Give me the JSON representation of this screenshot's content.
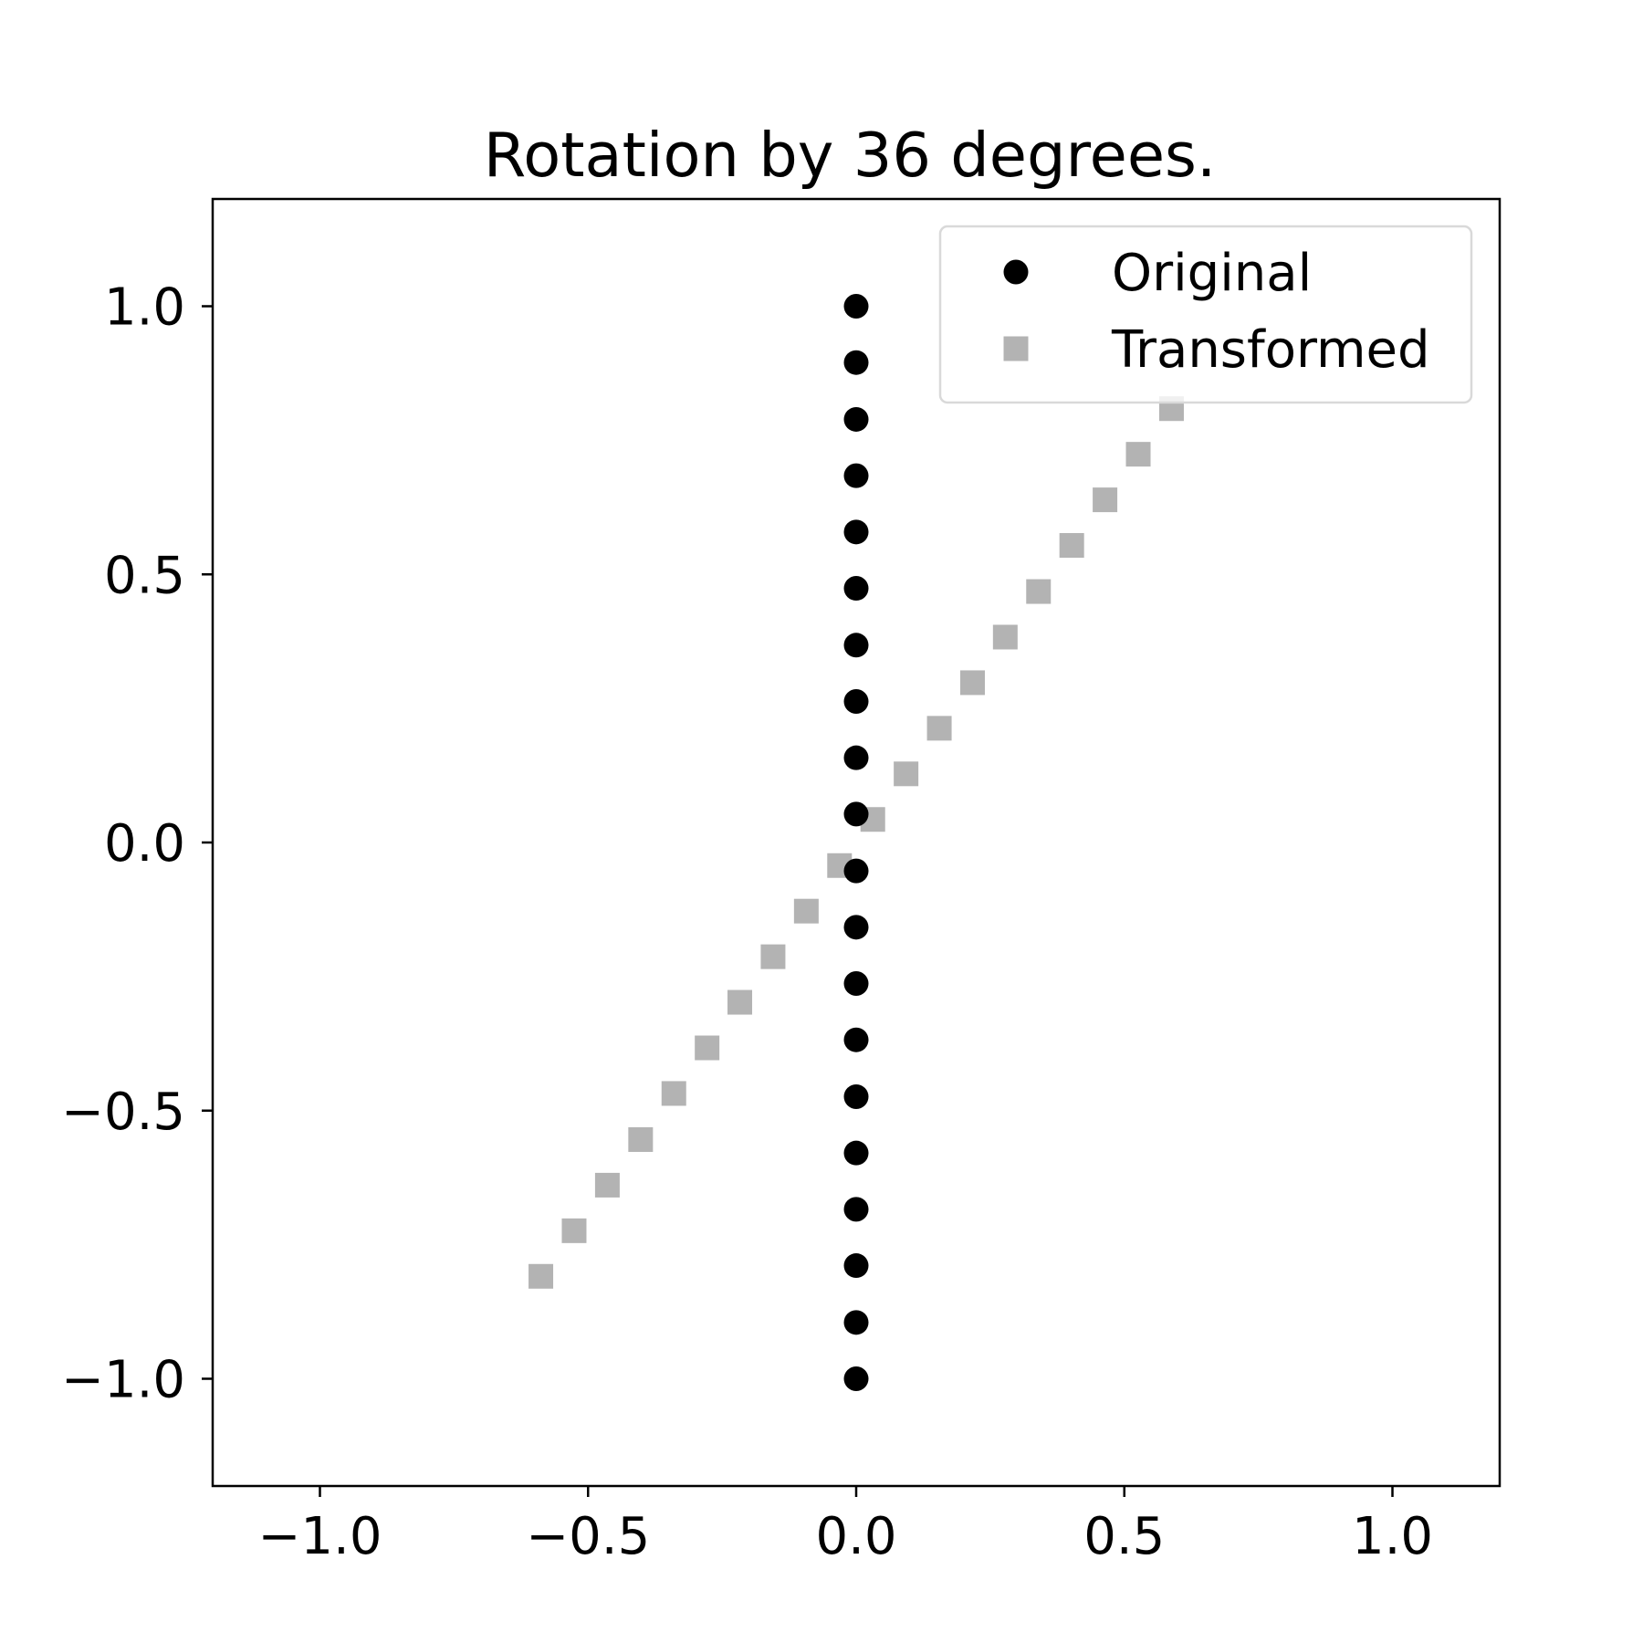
{
  "chart_data": {
    "type": "scatter",
    "title": "Rotation by 36 degrees.",
    "xlabel": "",
    "ylabel": "",
    "xlim": [
      -1.2,
      1.2
    ],
    "ylim": [
      -1.2,
      1.2
    ],
    "xticks": [
      -1.0,
      -0.5,
      0.0,
      0.5,
      1.0
    ],
    "yticks": [
      -1.0,
      -0.5,
      0.0,
      0.5,
      1.0
    ],
    "xtick_labels": [
      "−1.0",
      "−0.5",
      "0.0",
      "0.5",
      "1.0"
    ],
    "ytick_labels": [
      "−1.0",
      "−0.5",
      "0.0",
      "0.5",
      "1.0"
    ],
    "grid": false,
    "legend": {
      "placement": "top-right"
    },
    "series": [
      {
        "name": "Original",
        "marker": "circle",
        "color": "#000000",
        "x": [
          0,
          0,
          0,
          0,
          0,
          0,
          0,
          0,
          0,
          0,
          0,
          0,
          0,
          0,
          0,
          0,
          0,
          0,
          0,
          0
        ],
        "y": [
          -1.0,
          -0.895,
          -0.789,
          -0.684,
          -0.579,
          -0.474,
          -0.368,
          -0.263,
          -0.158,
          -0.053,
          0.053,
          0.158,
          0.263,
          0.368,
          0.474,
          0.579,
          0.684,
          0.789,
          0.895,
          1.0
        ]
      },
      {
        "name": "Transformed",
        "marker": "square",
        "color": "#b3b3b3",
        "x": [
          -0.588,
          -0.526,
          -0.464,
          -0.402,
          -0.34,
          -0.278,
          -0.217,
          -0.155,
          -0.093,
          -0.031,
          0.031,
          0.093,
          0.155,
          0.217,
          0.278,
          0.34,
          0.402,
          0.464,
          0.526,
          0.588
        ],
        "y": [
          -0.809,
          -0.724,
          -0.639,
          -0.554,
          -0.468,
          -0.383,
          -0.298,
          -0.213,
          -0.128,
          -0.043,
          0.043,
          0.128,
          0.213,
          0.298,
          0.383,
          0.468,
          0.554,
          0.639,
          0.724,
          0.809
        ]
      }
    ]
  }
}
